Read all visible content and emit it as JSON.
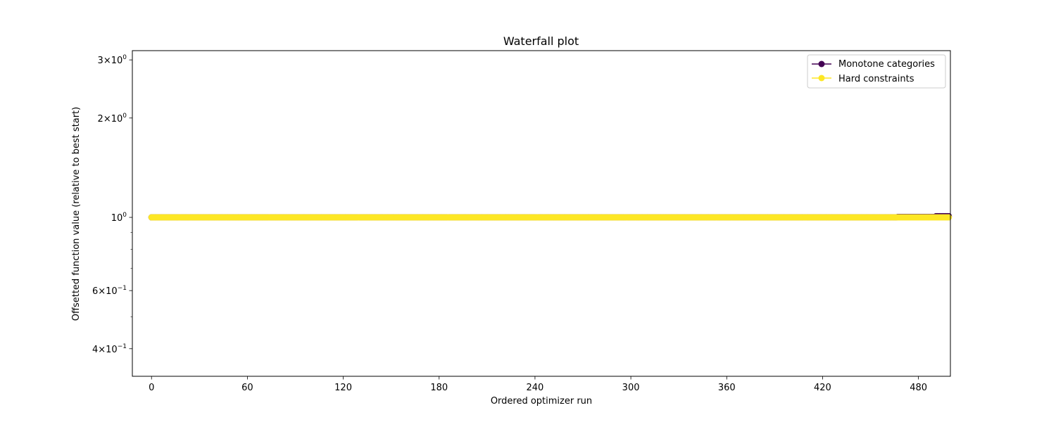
{
  "chart_data": {
    "type": "line",
    "title": "Waterfall plot",
    "xlabel": "Ordered optimizer run",
    "ylabel": "Offsetted function value (relative to best start)",
    "y_scale": "log",
    "xlim": [
      -12,
      500
    ],
    "ylim": [
      0.33,
      3.2
    ],
    "x_ticks": [
      0,
      60,
      120,
      180,
      240,
      300,
      360,
      420,
      480
    ],
    "y_major_ticks": [
      {
        "value": 0.4,
        "base": "4×10",
        "exp": "−1"
      },
      {
        "value": 0.6,
        "base": "6×10",
        "exp": "−1"
      },
      {
        "value": 1,
        "base": "10",
        "exp": "0"
      },
      {
        "value": 2,
        "base": "2×10",
        "exp": "0"
      },
      {
        "value": 3,
        "base": "3×10",
        "exp": "0"
      }
    ],
    "y_minor_ticks": [
      0.5,
      0.7,
      0.8,
      0.9
    ],
    "grid": false,
    "legend_position": "top-right",
    "series": [
      {
        "name": "Monotone categories",
        "color": "#440154",
        "n_points": 500,
        "segments": [
          {
            "from_run": 0,
            "to_run": 466,
            "value": 1.0
          },
          {
            "from_run": 467,
            "to_run": 490,
            "value": 1.003
          },
          {
            "from_run": 491,
            "to_run": 499,
            "value": 1.008
          }
        ]
      },
      {
        "name": "Hard constraints",
        "color": "#fde725",
        "n_points": 500,
        "segments": [
          {
            "from_run": 0,
            "to_run": 499,
            "value": 1.0
          }
        ]
      }
    ]
  }
}
